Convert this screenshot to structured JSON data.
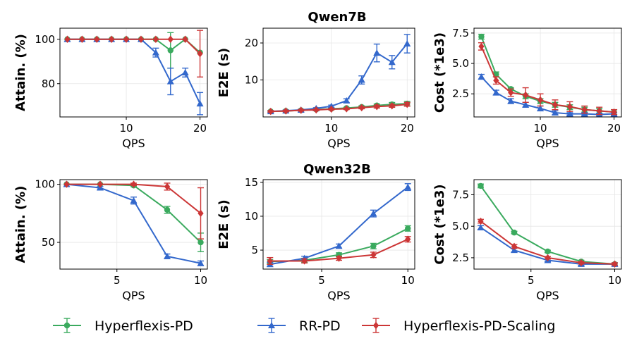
{
  "colors": {
    "green": "#3aaa5e",
    "blue": "#3368cc",
    "red": "#cc3636"
  },
  "legend": [
    {
      "name": "Hyperflexis-PD",
      "color": "#3aaa5e",
      "marker": "circle"
    },
    {
      "name": "RR-PD",
      "color": "#3368cc",
      "marker": "triangle"
    },
    {
      "name": "Hyperflexis-PD-Scaling",
      "color": "#cc3636",
      "marker": "diamond"
    }
  ],
  "chart_data": [
    {
      "type": "line",
      "row_title": "Qwen7B",
      "xlabel": "QPS",
      "ylabel": "Attain. (%)",
      "xlim": [
        1,
        21
      ],
      "ylim": [
        65,
        105
      ],
      "xticks": [
        10,
        20
      ],
      "yticks": [
        80,
        100
      ],
      "series": [
        {
          "name": "Hyperflexis-PD",
          "marker": "circle",
          "x": [
            2,
            4,
            6,
            8,
            10,
            12,
            14,
            16,
            18,
            20
          ],
          "y": [
            100,
            100,
            100,
            100,
            100,
            100,
            100,
            95,
            100,
            94
          ],
          "err": [
            0,
            0,
            0,
            0,
            0,
            0,
            0,
            8,
            0,
            0
          ]
        },
        {
          "name": "RR-PD",
          "marker": "triangle",
          "x": [
            2,
            4,
            6,
            8,
            10,
            12,
            14,
            16,
            18,
            20
          ],
          "y": [
            100,
            100,
            100,
            100,
            100,
            100,
            94,
            81,
            85,
            71
          ],
          "err": [
            0,
            0,
            0,
            0,
            0,
            0,
            2,
            6,
            2,
            5
          ]
        },
        {
          "name": "Hyperflexis-PD-Scaling",
          "marker": "diamond",
          "x": [
            2,
            4,
            6,
            8,
            10,
            12,
            14,
            16,
            18,
            20
          ],
          "y": [
            100,
            100,
            100,
            100,
            100,
            100,
            100,
            100,
            100,
            93.5
          ],
          "err": [
            0,
            0,
            0,
            0,
            0,
            0,
            0,
            0,
            0,
            10.5
          ]
        }
      ]
    },
    {
      "type": "line",
      "row_title": "Qwen7B",
      "xlabel": "QPS",
      "ylabel": "E2E (s)",
      "xlim": [
        1,
        21
      ],
      "ylim": [
        0,
        24
      ],
      "xticks": [
        10,
        20
      ],
      "yticks": [
        10,
        20
      ],
      "series": [
        {
          "name": "Hyperflexis-PD",
          "marker": "circle",
          "x": [
            2,
            4,
            6,
            8,
            10,
            12,
            14,
            16,
            18,
            20
          ],
          "y": [
            1.5,
            1.6,
            1.8,
            2,
            2.2,
            2.4,
            2.7,
            3.1,
            3.4,
            3.6
          ],
          "err": [
            0.2,
            0.2,
            0.2,
            0.2,
            0.2,
            0.2,
            0.3,
            0.4,
            0.5,
            0.6
          ]
        },
        {
          "name": "RR-PD",
          "marker": "triangle",
          "x": [
            2,
            4,
            6,
            8,
            10,
            12,
            14,
            16,
            18,
            20
          ],
          "y": [
            1.5,
            1.7,
            1.9,
            2.3,
            2.9,
            4.4,
            10,
            17.3,
            14.8,
            19.8
          ],
          "err": [
            0.2,
            0.2,
            0.2,
            0.2,
            0.3,
            0.5,
            1.1,
            2.4,
            1.8,
            2.5
          ]
        },
        {
          "name": "Hyperflexis-PD-Scaling",
          "marker": "diamond",
          "x": [
            2,
            4,
            6,
            8,
            10,
            12,
            14,
            16,
            18,
            20
          ],
          "y": [
            1.5,
            1.6,
            1.8,
            1.9,
            2.1,
            2.2,
            2.5,
            2.8,
            3,
            3.4
          ],
          "err": [
            0.2,
            0.2,
            0.2,
            0.2,
            0.2,
            0.2,
            0.3,
            0.4,
            0.4,
            0.5
          ]
        }
      ]
    },
    {
      "type": "line",
      "row_title": "Qwen7B",
      "xlabel": "QPS",
      "ylabel": "Cost (*1e3)",
      "xlim": [
        1,
        21
      ],
      "ylim": [
        0.6,
        7.9
      ],
      "xticks": [
        10,
        20
      ],
      "yticks": [
        2.5,
        5.0,
        7.5
      ],
      "ytick_labels": [
        "2.5",
        "5.0",
        "7.5"
      ],
      "series": [
        {
          "name": "Hyperflexis-PD",
          "marker": "circle",
          "x": [
            2,
            4,
            6,
            8,
            10,
            12,
            14,
            16,
            18,
            20
          ],
          "y": [
            7.2,
            4.1,
            2.9,
            2.3,
            1.9,
            1.6,
            1.4,
            1.2,
            1.1,
            1
          ],
          "err": [
            0.2,
            0.2,
            0.1,
            0.2,
            0.2,
            0.2,
            0.2,
            0.2,
            0.2,
            0.2
          ]
        },
        {
          "name": "RR-PD",
          "marker": "triangle",
          "x": [
            2,
            4,
            6,
            8,
            10,
            12,
            14,
            16,
            18,
            20
          ],
          "y": [
            3.9,
            2.6,
            1.9,
            1.6,
            1.3,
            0.95,
            0.85,
            0.85,
            0.8,
            0.85
          ],
          "err": [
            0.2,
            0.2,
            0.2,
            0.2,
            0.2,
            0.15,
            0.1,
            0.1,
            0.1,
            0.1
          ]
        },
        {
          "name": "Hyperflexis-PD-Scaling",
          "marker": "diamond",
          "x": [
            2,
            4,
            6,
            8,
            10,
            12,
            14,
            16,
            18,
            20
          ],
          "y": [
            6.4,
            3.6,
            2.6,
            2.4,
            2,
            1.6,
            1.45,
            1.2,
            1.1,
            1
          ],
          "err": [
            0.3,
            0.3,
            0.3,
            0.6,
            0.5,
            0.4,
            0.4,
            0.3,
            0.3,
            0.2
          ]
        }
      ]
    },
    {
      "type": "line",
      "row_title": "Qwen32B",
      "xlabel": "QPS",
      "ylabel": "Attain. (%)",
      "xlim": [
        1.6,
        10.4
      ],
      "ylim": [
        27,
        104
      ],
      "xticks": [
        5,
        10
      ],
      "yticks": [
        50,
        100
      ],
      "series": [
        {
          "name": "Hyperflexis-PD",
          "marker": "circle",
          "x": [
            2,
            4,
            6,
            8,
            10
          ],
          "y": [
            100,
            100,
            99,
            78,
            50
          ],
          "err": [
            0,
            0,
            1,
            3,
            8
          ]
        },
        {
          "name": "RR-PD",
          "marker": "triangle",
          "x": [
            2,
            4,
            6,
            8,
            10
          ],
          "y": [
            100,
            97,
            86,
            38,
            32
          ],
          "err": [
            0,
            1,
            3,
            2,
            2
          ]
        },
        {
          "name": "Hyperflexis-PD-Scaling",
          "marker": "diamond",
          "x": [
            2,
            4,
            6,
            8,
            10
          ],
          "y": [
            100,
            100,
            100,
            98,
            75
          ],
          "err": [
            0,
            0,
            1,
            3,
            22
          ]
        }
      ]
    },
    {
      "type": "line",
      "row_title": "Qwen32B",
      "xlabel": "QPS",
      "ylabel": "E2E (s)",
      "xlim": [
        1.6,
        10.4
      ],
      "ylim": [
        2.2,
        15.4
      ],
      "xticks": [
        5,
        10
      ],
      "yticks": [
        5,
        10,
        15
      ],
      "series": [
        {
          "name": "Hyperflexis-PD",
          "marker": "circle",
          "x": [
            2,
            4,
            6,
            8,
            10
          ],
          "y": [
            3.3,
            3.5,
            4.3,
            5.6,
            8.2
          ],
          "err": [
            0.3,
            0.3,
            0.3,
            0.4,
            0.4
          ]
        },
        {
          "name": "RR-PD",
          "marker": "triangle",
          "x": [
            2,
            4,
            6,
            8,
            10
          ],
          "y": [
            2.9,
            3.8,
            5.6,
            10.4,
            14.3
          ],
          "err": [
            0.3,
            0.3,
            0.3,
            0.5,
            0.5
          ]
        },
        {
          "name": "Hyperflexis-PD-Scaling",
          "marker": "diamond",
          "x": [
            2,
            4,
            6,
            8,
            10
          ],
          "y": [
            3.4,
            3.4,
            3.8,
            4.3,
            6.6
          ],
          "err": [
            0.5,
            0.3,
            0.3,
            0.4,
            0.4
          ]
        }
      ]
    },
    {
      "type": "line",
      "row_title": "Qwen32B",
      "xlabel": "QPS",
      "ylabel": "Cost (*1e3)",
      "xlim": [
        1.6,
        10.4
      ],
      "ylim": [
        1.6,
        8.7
      ],
      "xticks": [
        5,
        10
      ],
      "yticks": [
        2.5,
        5.0,
        7.5
      ],
      "ytick_labels": [
        "2.5",
        "5.0",
        "7.5"
      ],
      "series": [
        {
          "name": "Hyperflexis-PD",
          "marker": "circle",
          "x": [
            2,
            4,
            6,
            8,
            10
          ],
          "y": [
            8.2,
            4.5,
            3,
            2.2,
            2
          ],
          "err": [
            0.15,
            0.1,
            0.1,
            0.1,
            0.1
          ]
        },
        {
          "name": "RR-PD",
          "marker": "triangle",
          "x": [
            2,
            4,
            6,
            8,
            10
          ],
          "y": [
            4.9,
            3.1,
            2.3,
            2,
            2
          ],
          "err": [
            0.15,
            0.15,
            0.1,
            0.1,
            0.1
          ]
        },
        {
          "name": "Hyperflexis-PD-Scaling",
          "marker": "diamond",
          "x": [
            2,
            4,
            6,
            8,
            10
          ],
          "y": [
            5.4,
            3.4,
            2.5,
            2.1,
            2
          ],
          "err": [
            0.15,
            0.15,
            0.1,
            0.1,
            0.1
          ]
        }
      ]
    }
  ]
}
